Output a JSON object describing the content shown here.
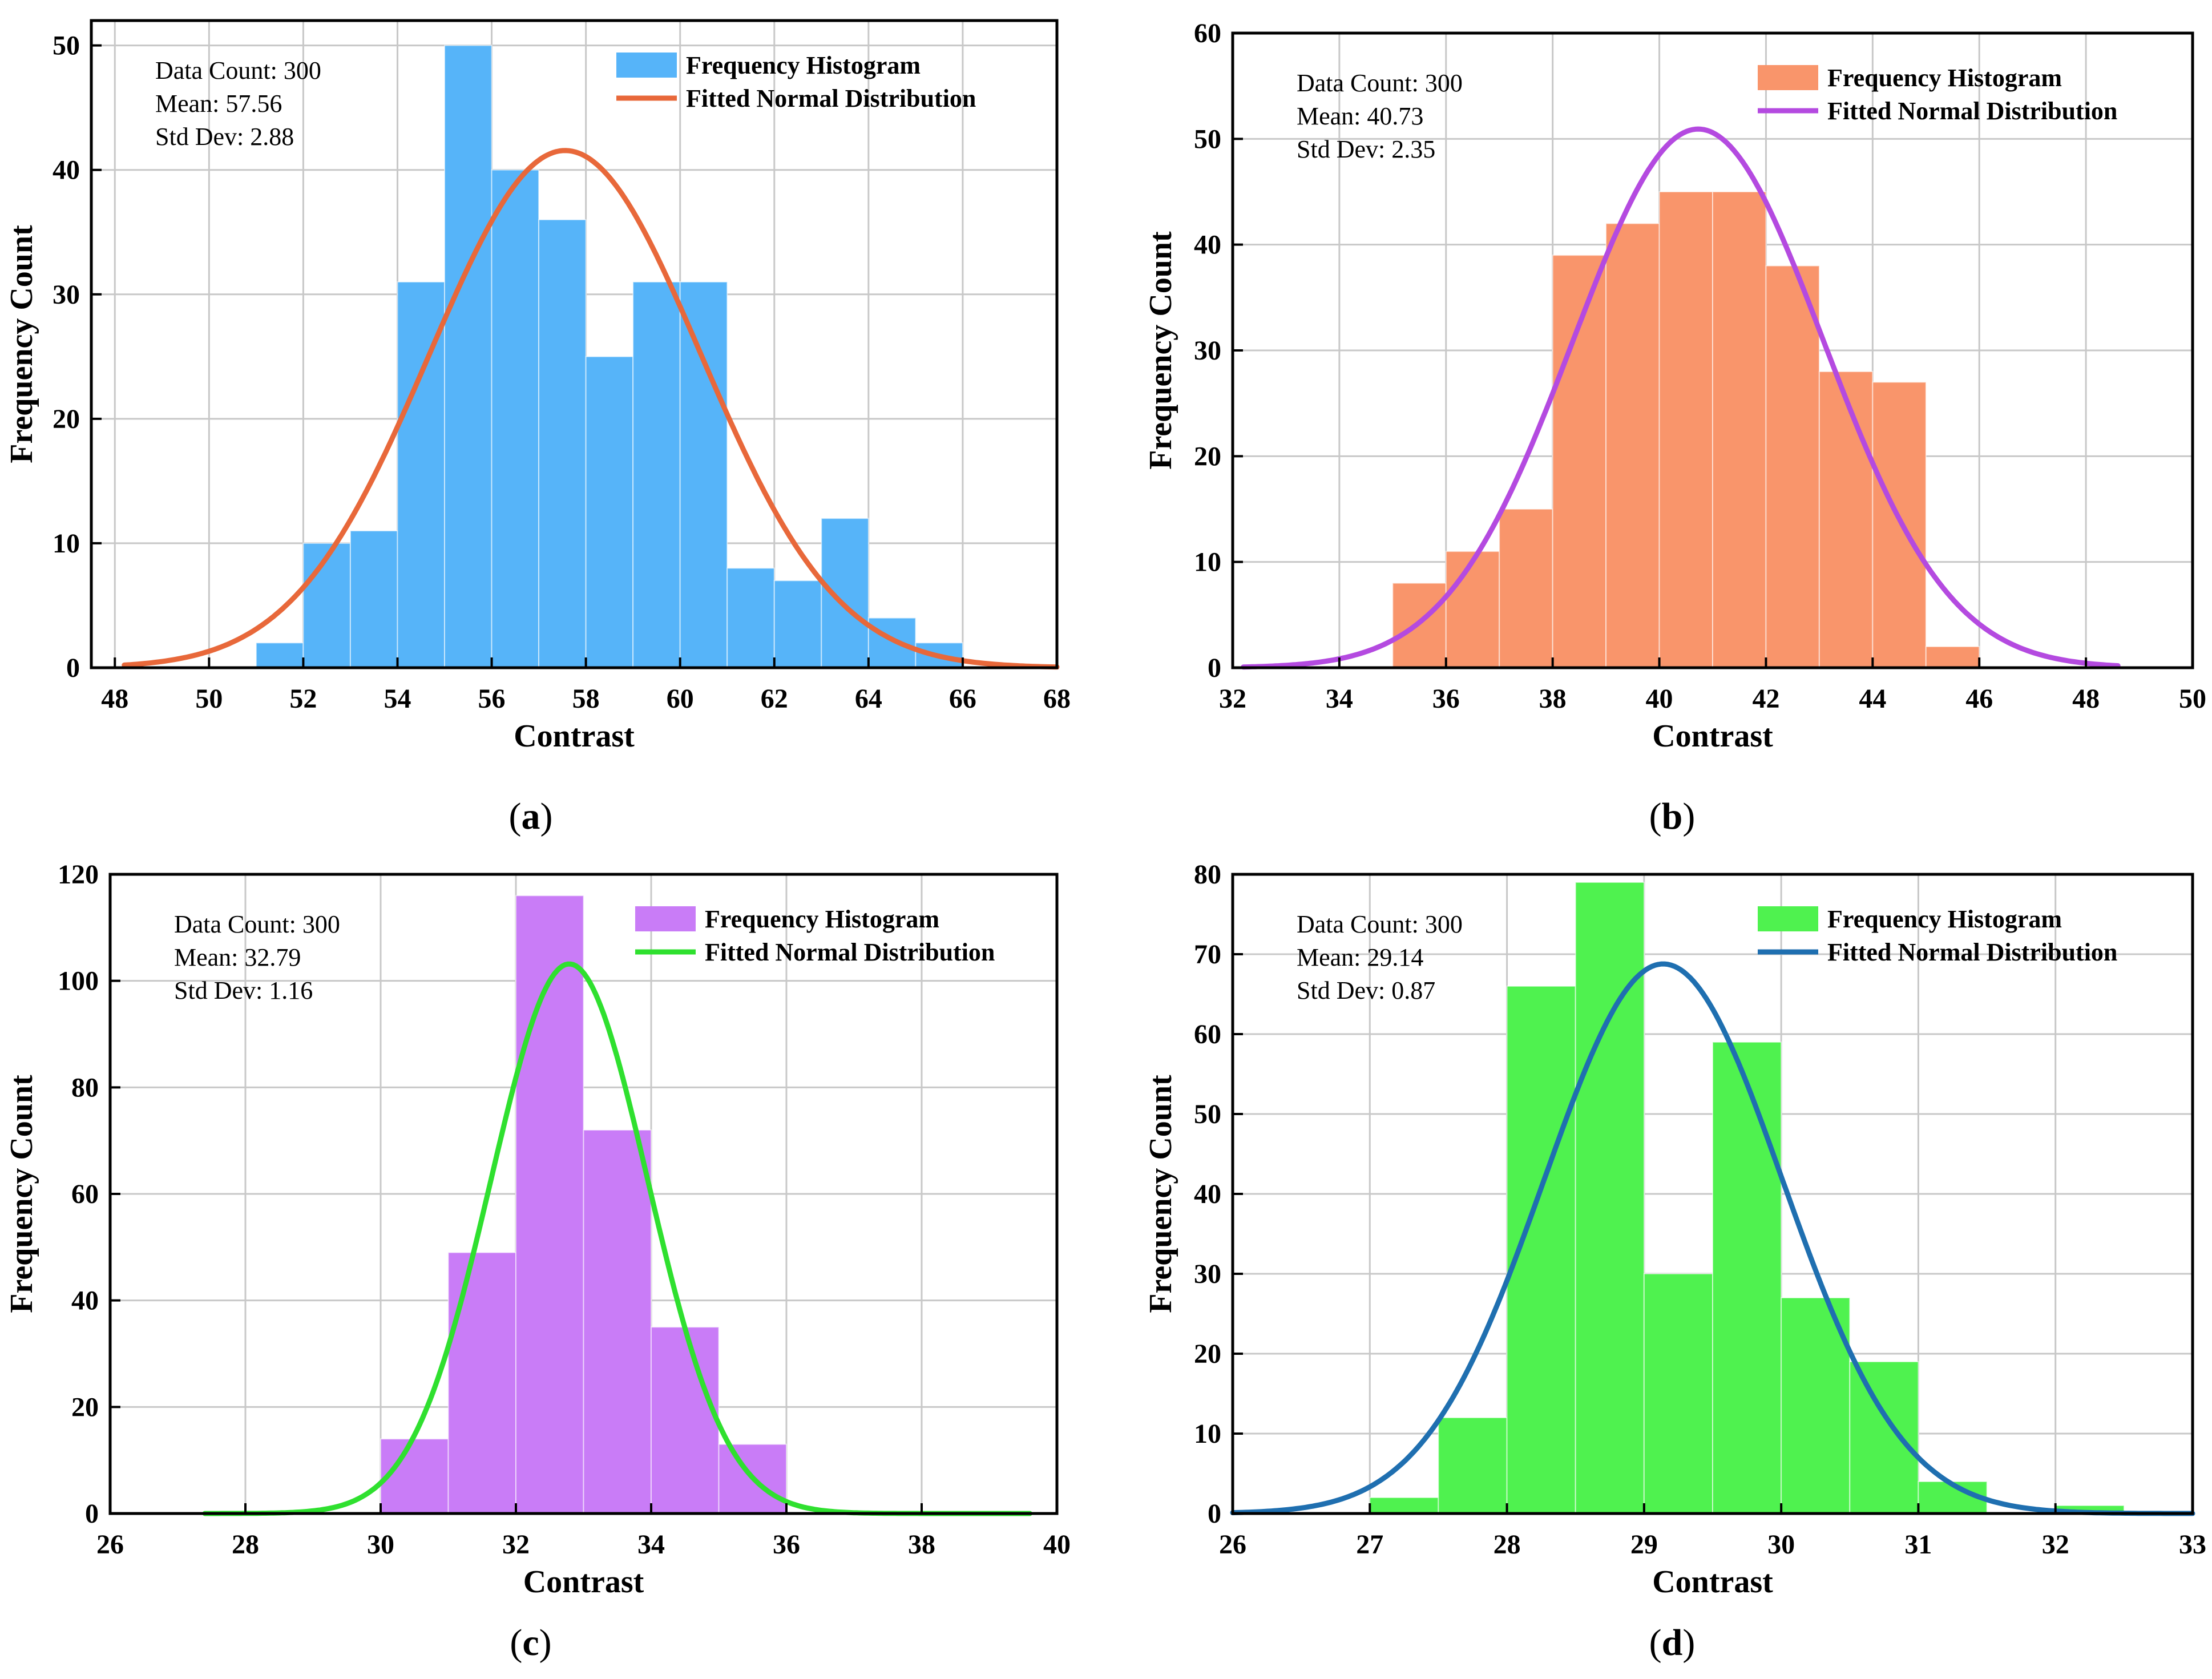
{
  "chart_data": [
    {
      "type": "bar",
      "panel_label": "(a)",
      "panel_letter": "a",
      "xlabel": "Contrast",
      "ylabel": "Frequency Count",
      "xlim": [
        47.5,
        68
      ],
      "ylim": [
        0,
        52
      ],
      "xticks": [
        48,
        50,
        52,
        54,
        56,
        58,
        60,
        62,
        64,
        66,
        68
      ],
      "yticks": [
        0,
        10,
        20,
        30,
        40,
        50
      ],
      "grid": true,
      "bin_width": 1,
      "bins": [
        {
          "start": 51,
          "count": 2
        },
        {
          "start": 52,
          "count": 10
        },
        {
          "start": 53,
          "count": 11
        },
        {
          "start": 54,
          "count": 31
        },
        {
          "start": 55,
          "count": 50
        },
        {
          "start": 56,
          "count": 40
        },
        {
          "start": 57,
          "count": 36
        },
        {
          "start": 58,
          "count": 25
        },
        {
          "start": 59,
          "count": 31
        },
        {
          "start": 60,
          "count": 31
        },
        {
          "start": 61,
          "count": 8
        },
        {
          "start": 62,
          "count": 7
        },
        {
          "start": 63,
          "count": 12
        },
        {
          "start": 64,
          "count": 4
        },
        {
          "start": 65,
          "count": 2
        }
      ],
      "bar_color": "#56b4f9",
      "fit": {
        "mean": 57.56,
        "std": 2.88,
        "count": 300,
        "bin_width": 1,
        "x_range": [
          48.2,
          68
        ],
        "color": "#e8683a"
      },
      "stats": [
        "Data Count: 300",
        "Mean: 57.56",
        "Std Dev: 2.88"
      ],
      "legend": [
        {
          "label": "Frequency Histogram",
          "kind": "patch",
          "color": "#56b4f9"
        },
        {
          "label": "Fitted Normal Distribution",
          "kind": "line",
          "color": "#e8683a"
        }
      ]
    },
    {
      "type": "bar",
      "panel_label": "(b)",
      "panel_letter": "b",
      "xlabel": "Contrast",
      "ylabel": "Frequency Count",
      "xlim": [
        32,
        50
      ],
      "ylim": [
        0,
        60
      ],
      "xticks": [
        32,
        34,
        36,
        38,
        40,
        42,
        44,
        46,
        48,
        50
      ],
      "yticks": [
        0,
        10,
        20,
        30,
        40,
        50,
        60
      ],
      "grid": true,
      "bin_width": 1,
      "bins": [
        {
          "start": 35,
          "count": 8
        },
        {
          "start": 36,
          "count": 11
        },
        {
          "start": 37,
          "count": 15
        },
        {
          "start": 38,
          "count": 39
        },
        {
          "start": 39,
          "count": 42
        },
        {
          "start": 40,
          "count": 45
        },
        {
          "start": 41,
          "count": 45
        },
        {
          "start": 42,
          "count": 38
        },
        {
          "start": 43,
          "count": 28
        },
        {
          "start": 44,
          "count": 27
        },
        {
          "start": 45,
          "count": 2
        }
      ],
      "bar_color": "#f9956b",
      "fit": {
        "mean": 40.73,
        "std": 2.35,
        "count": 300,
        "bin_width": 1,
        "x_range": [
          32.2,
          48.6
        ],
        "color": "#b44ae0"
      },
      "stats": [
        "Data Count: 300",
        "Mean: 40.73",
        "Std Dev: 2.35"
      ],
      "legend": [
        {
          "label": "Frequency Histogram",
          "kind": "patch",
          "color": "#f9956b"
        },
        {
          "label": "Fitted Normal Distribution",
          "kind": "line",
          "color": "#b44ae0"
        }
      ]
    },
    {
      "type": "bar",
      "panel_label": "(c)",
      "panel_letter": "c",
      "xlabel": "Contrast",
      "ylabel": "Frequency Count",
      "xlim": [
        26,
        40
      ],
      "ylim": [
        0,
        120
      ],
      "xticks": [
        26,
        28,
        30,
        32,
        34,
        36,
        38,
        40
      ],
      "yticks": [
        0,
        20,
        40,
        60,
        80,
        100,
        120
      ],
      "grid": true,
      "bin_width": 1,
      "bins": [
        {
          "start": 30,
          "count": 14
        },
        {
          "start": 31,
          "count": 49
        },
        {
          "start": 32,
          "count": 116
        },
        {
          "start": 33,
          "count": 72
        },
        {
          "start": 34,
          "count": 35
        },
        {
          "start": 35,
          "count": 13
        }
      ],
      "bar_color": "#c97cf7",
      "fit": {
        "mean": 32.79,
        "std": 1.16,
        "count": 300,
        "bin_width": 1,
        "x_range": [
          27.4,
          39.6
        ],
        "color": "#2fe02f"
      },
      "stats": [
        "Data Count: 300",
        "Mean: 32.79",
        "Std Dev: 1.16"
      ],
      "legend": [
        {
          "label": "Frequency Histogram",
          "kind": "patch",
          "color": "#c97cf7"
        },
        {
          "label": "Fitted Normal Distribution",
          "kind": "line",
          "color": "#2fe02f"
        }
      ]
    },
    {
      "type": "bar",
      "panel_label": "(d)",
      "panel_letter": "d",
      "xlabel": "Contrast",
      "ylabel": "Frequency Count",
      "xlim": [
        26,
        33
      ],
      "ylim": [
        0,
        80
      ],
      "xticks": [
        26,
        27,
        28,
        29,
        30,
        31,
        32,
        33
      ],
      "yticks": [
        0,
        10,
        20,
        30,
        40,
        50,
        60,
        70,
        80
      ],
      "grid": true,
      "bin_width": 0.5,
      "bins": [
        {
          "start": 27.0,
          "count": 2
        },
        {
          "start": 27.5,
          "count": 12
        },
        {
          "start": 28.0,
          "count": 66
        },
        {
          "start": 28.5,
          "count": 79
        },
        {
          "start": 29.0,
          "count": 30
        },
        {
          "start": 29.5,
          "count": 59
        },
        {
          "start": 30.0,
          "count": 27
        },
        {
          "start": 30.5,
          "count": 19
        },
        {
          "start": 31.0,
          "count": 4
        },
        {
          "start": 31.5,
          "count": 0
        },
        {
          "start": 32.0,
          "count": 1
        }
      ],
      "bar_color": "#4ff24f",
      "fit": {
        "mean": 29.14,
        "std": 0.87,
        "count": 300,
        "bin_width": 0.5,
        "x_range": [
          26.0,
          33.0
        ],
        "color": "#1f6fb0"
      },
      "stats": [
        "Data Count: 300",
        "Mean: 29.14",
        "Std Dev: 0.87"
      ],
      "legend": [
        {
          "label": "Frequency Histogram",
          "kind": "patch",
          "color": "#4ff24f"
        },
        {
          "label": "Fitted Normal Distribution",
          "kind": "line",
          "color": "#1f6fb0"
        }
      ]
    }
  ]
}
